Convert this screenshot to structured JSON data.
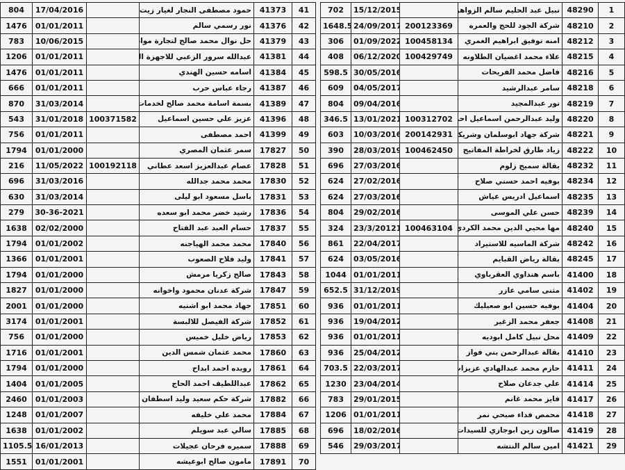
{
  "left_table": {
    "rows": [
      [
        41,
        41373,
        "حمود مصطفى النجار لغيار زيت السيارات",
        null,
        "17/04/2016",
        804
      ],
      [
        42,
        41376,
        "نور رسمي سالم",
        null,
        "01/01/2011",
        1476
      ],
      [
        43,
        41379,
        "حل نوال محمد صالح لتجارة مواد التجميل",
        null,
        "10/06/2015",
        783
      ],
      [
        44,
        41381,
        "عبدالله سرور الزعبي للاجهزة الخلوية",
        null,
        "01/01/2011",
        1206
      ],
      [
        45,
        41384,
        "اسامه حسين الهندي",
        null,
        "01/01/2011",
        1476
      ],
      [
        46,
        41387,
        "رجاء عباس حرب",
        null,
        "01/01/2011",
        666
      ],
      [
        47,
        41389,
        "بسمة اسامة محمد صالح لخدمات المطبعية",
        null,
        "31/03/2014",
        870
      ],
      [
        48,
        41396,
        "عزيز علي حسين اسماعيل",
        100371582,
        "31/01/2018",
        543
      ],
      [
        49,
        41399,
        "احمد مصطفى",
        null,
        "01/01/2011",
        756
      ],
      [
        50,
        17827,
        "سمر عثمان المصري",
        null,
        "01/01/2000",
        1794
      ],
      [
        51,
        17828,
        "عصام عبدالعزيز اسعد عطاني",
        100192118,
        "11/05/2022",
        216
      ],
      [
        52,
        17830,
        "محمد محمد جدالله",
        null,
        "31/03/2016",
        696
      ],
      [
        53,
        17831,
        "باسل مسعود ابو ليلى",
        null,
        "31/03/2014",
        630
      ],
      [
        54,
        17836,
        "رشيد خضر محمد ابو سعده",
        null,
        "30-36-2021",
        279
      ],
      [
        55,
        17837,
        "حسام العبد عبد الفتاح",
        null,
        "02/02/2000",
        1638
      ],
      [
        56,
        17840,
        "محمد محمد الهياجنه",
        null,
        "01/01/2002",
        1794
      ],
      [
        57,
        17841,
        "وليد فلاح الصعوب",
        null,
        "01/01/2001",
        1366
      ],
      [
        58,
        17843,
        "صالح زكريا مرمش",
        null,
        "01/01/2000",
        1794
      ],
      [
        59,
        17847,
        "شركة عدنان محمود واخوانه",
        null,
        "01/01/2000",
        1827
      ],
      [
        60,
        17851,
        "جهاد محمد ابو اشنيه",
        null,
        "01/01/2000",
        2001
      ],
      [
        61,
        17852,
        "شركة الفيصل للالبسة",
        null,
        "01/01/2001",
        3174
      ],
      [
        62,
        17853,
        "رياض خليل خميس",
        null,
        "01/01/2000",
        756
      ],
      [
        63,
        17860,
        "محمد عثمان شمس الدين",
        null,
        "01/01/2001",
        1716
      ],
      [
        64,
        17861,
        "رويده احمد ابداح",
        null,
        "01/01/2000",
        1794
      ],
      [
        65,
        17862,
        "عبداللطيف احمد الحاج",
        null,
        "01/01/2005",
        1404
      ],
      [
        66,
        17882,
        "شركة حكم سعيد وليد اسطفان",
        null,
        "01/01/2003",
        2460
      ],
      [
        67,
        17884,
        "محمد علي خليفه",
        null,
        "01/01/2007",
        1248
      ],
      [
        68,
        17885,
        "سالي عبد سويلم",
        null,
        "01/01/2002",
        1638
      ],
      [
        69,
        17888,
        "سميره فرحان عجيلات",
        null,
        "16/01/2013",
        1105.5
      ],
      [
        70,
        17891,
        "مامون صالح ابوعيشه",
        null,
        "01/01/2001",
        1551
      ]
    ]
  },
  "right_table": {
    "rows": [
      [
        1,
        48290,
        "نبيل عبد الحليم سالم الزواهره",
        null,
        "15/12/2015",
        702
      ],
      [
        2,
        48210,
        "شركة الجود للحج والعمره",
        200123369,
        "24/09/2017",
        1648.5
      ],
      [
        3,
        48212,
        "امنه توفيق ابراهيم الغمري",
        100458134,
        "01/09/2022",
        306
      ],
      [
        4,
        48215,
        "علاء محمد اغضيان الطلاونه",
        100429749,
        "06/12/2020",
        408
      ],
      [
        5,
        48216,
        "فاضل محمد الفريحات",
        null,
        "30/05/2016",
        598.5
      ],
      [
        6,
        48218,
        "سامر عبدالرشيد",
        null,
        "04/05/2017",
        609
      ],
      [
        7,
        48219,
        "نور عبدالمجيد",
        null,
        "09/04/2016",
        804
      ],
      [
        8,
        48220,
        "وليد عبدالرحمن اسماعيل احمد",
        100312702,
        "13/01/2021",
        346.5
      ],
      [
        9,
        48221,
        "شركة جهاد ابوسلمان وشريكه",
        200142931,
        "10/03/2016",
        603
      ],
      [
        10,
        48222,
        "زياد طارق لخراطة المفاتيح",
        100462450,
        "28/03/2019",
        390
      ],
      [
        11,
        48232,
        "بقالة سميح زلوم",
        null,
        "27/03/2016",
        696
      ],
      [
        12,
        48234,
        "بوفيه احمد حسني صلاح",
        null,
        "27/02/2016",
        624
      ],
      [
        13,
        48235,
        "اسماعيل ادريس عياش",
        null,
        "27/03/2016",
        624
      ],
      [
        14,
        48239,
        "حسن علي الموسى",
        null,
        "29/02/2016",
        804
      ],
      [
        15,
        48240,
        "مها محيي الدين محمد الكردي",
        100463104,
        "23/3/20121",
        324
      ],
      [
        16,
        48242,
        "شركة الماسيه للاستيراد",
        null,
        "22/04/2017",
        861
      ],
      [
        17,
        48245,
        "بقالة رياض القبايم",
        null,
        "03/05/2016",
        624
      ],
      [
        18,
        41400,
        "باسم هنداوي العقرباوي",
        null,
        "01/01/2011",
        1044
      ],
      [
        19,
        41402,
        "مثنى سامي عازر",
        null,
        "31/12/2019",
        652.5
      ],
      [
        20,
        41404,
        "بوفيه حسين ابو صعيليك",
        null,
        "01/01/2011",
        936
      ],
      [
        21,
        41408,
        "جعفر محمد الزغير",
        null,
        "19/04/2012",
        936
      ],
      [
        22,
        41409,
        "محل نبيل كامل ابوديه",
        null,
        "01/01/2011",
        936
      ],
      [
        23,
        41410,
        "بقالة عبدالرحمن بني فواز",
        null,
        "25/04/2012",
        936
      ],
      [
        24,
        41411,
        "حازم محمد عبدالهادي عزيزات",
        null,
        "22/03/2017",
        703.5
      ],
      [
        25,
        41414,
        "علي جدعان صلاح",
        null,
        "23/04/2014",
        1230
      ],
      [
        26,
        41417,
        "فايز محمد غانم",
        null,
        "29/01/2015",
        783
      ],
      [
        27,
        41418,
        "محمص فداء صبحي نمر",
        null,
        "01/01/2011",
        1206
      ],
      [
        28,
        41419,
        "صالون زين ابوجازي للسيدات",
        null,
        "18/02/2016",
        696
      ],
      [
        29,
        41421,
        "امين سالم النتشه",
        null,
        "29/03/2017",
        546
      ]
    ]
  }
}
